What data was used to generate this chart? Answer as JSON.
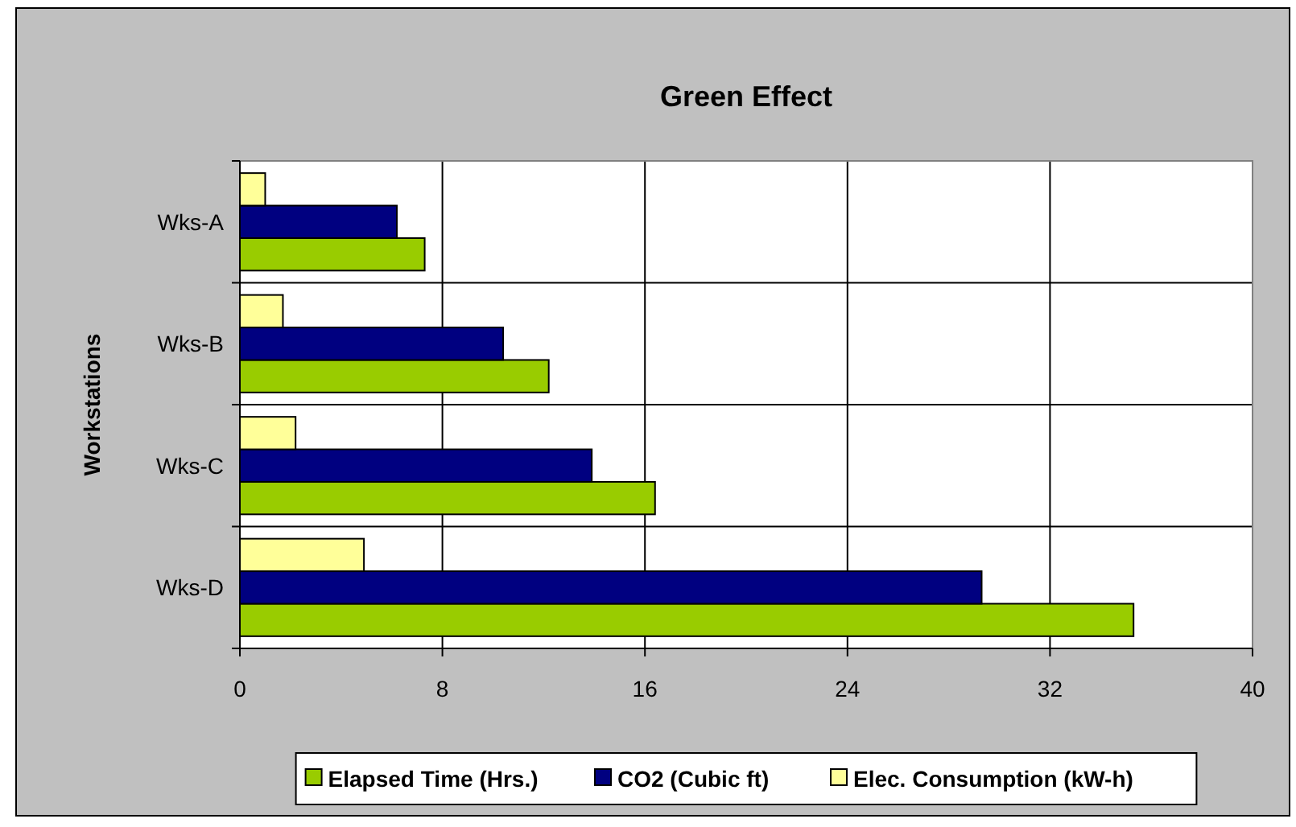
{
  "chart_data": {
    "type": "bar",
    "orientation": "horizontal",
    "title": "Green Effect",
    "ylabel": "Workstations",
    "categories": [
      "Wks-A",
      "Wks-B",
      "Wks-C",
      "Wks-D"
    ],
    "series": [
      {
        "name": "Elapsed Time (Hrs.)",
        "color": "#99cc00",
        "values": [
          7.3,
          12.2,
          16.4,
          35.3
        ]
      },
      {
        "name": "CO2  (Cubic ft)",
        "color": "#000080",
        "values": [
          6.2,
          10.4,
          13.9,
          29.3
        ]
      },
      {
        "name": "Elec. Consumption (kW-h)",
        "color": "#ffff99",
        "values": [
          1.0,
          1.7,
          2.2,
          4.9
        ]
      }
    ],
    "xlim": [
      0,
      40
    ],
    "xticks": [
      0,
      8,
      16,
      24,
      32,
      40
    ],
    "grid": true,
    "legend": "bottom"
  }
}
